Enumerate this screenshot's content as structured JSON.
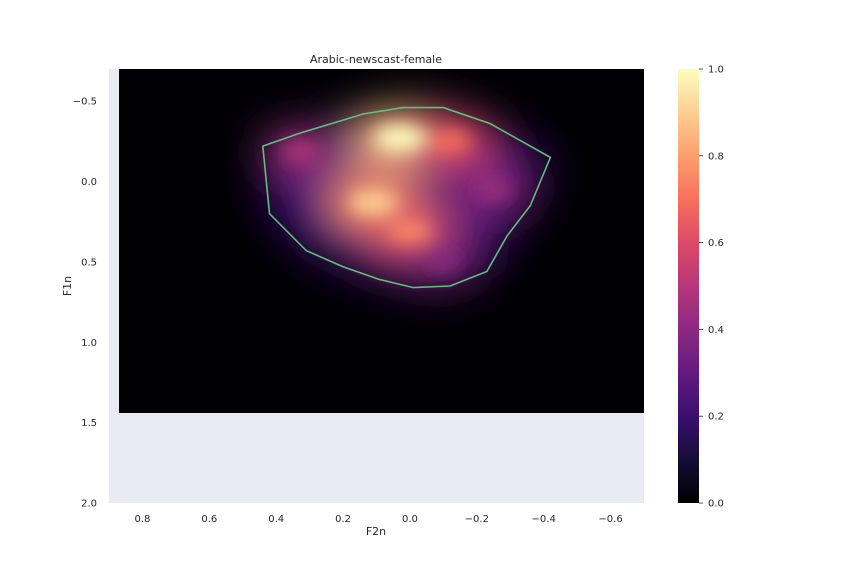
{
  "chart_data": {
    "type": "heatmap",
    "title": "Arabic-newscast-female",
    "xlabel": "F2n",
    "ylabel": "F1n",
    "xlim": [
      0.9,
      -0.7
    ],
    "ylim": [
      2.0,
      -0.7
    ],
    "x_inverted": true,
    "y_inverted": true,
    "x_ticks": [
      "0.8",
      "0.6",
      "0.4",
      "0.2",
      "0.0",
      "−0.2",
      "−0.4",
      "−0.6"
    ],
    "x_tick_values": [
      0.8,
      0.6,
      0.4,
      0.2,
      0.0,
      -0.2,
      -0.4,
      -0.6
    ],
    "y_ticks": [
      "−0.5",
      "0.0",
      "0.5",
      "1.0",
      "1.5",
      "2.0"
    ],
    "y_tick_values": [
      -0.5,
      0.0,
      0.5,
      1.0,
      1.5,
      2.0
    ],
    "heatmap_extent": {
      "x": [
        0.87,
        -0.7
      ],
      "y": [
        -0.7,
        1.44
      ]
    },
    "density_peaks": [
      {
        "x": 0.03,
        "y": -0.27,
        "value": 1.0
      },
      {
        "x": 0.11,
        "y": 0.13,
        "value": 0.9
      },
      {
        "x": 0.0,
        "y": 0.31,
        "value": 0.75
      },
      {
        "x": -0.12,
        "y": -0.25,
        "value": 0.7
      },
      {
        "x": 0.33,
        "y": -0.19,
        "value": 0.5
      },
      {
        "x": -0.25,
        "y": 0.05,
        "value": 0.45
      },
      {
        "x": -0.1,
        "y": 0.5,
        "value": 0.4
      }
    ],
    "contour_line": {
      "color": "#5fbf7f",
      "points": [
        [
          0.44,
          -0.22
        ],
        [
          0.33,
          -0.3
        ],
        [
          0.14,
          -0.42
        ],
        [
          0.02,
          -0.46
        ],
        [
          -0.1,
          -0.46
        ],
        [
          -0.24,
          -0.36
        ],
        [
          -0.42,
          -0.15
        ],
        [
          -0.36,
          0.15
        ],
        [
          -0.29,
          0.34
        ],
        [
          -0.23,
          0.56
        ],
        [
          -0.12,
          0.65
        ],
        [
          -0.01,
          0.66
        ],
        [
          0.09,
          0.61
        ],
        [
          0.2,
          0.53
        ],
        [
          0.31,
          0.43
        ],
        [
          0.42,
          0.2
        ],
        [
          0.44,
          -0.22
        ]
      ]
    },
    "colorbar": {
      "colormap": "magma",
      "range": [
        0.0,
        1.0
      ],
      "ticks": [
        "0.0",
        "0.2",
        "0.4",
        "0.6",
        "0.8",
        "1.0"
      ],
      "tick_values": [
        0.0,
        0.2,
        0.4,
        0.6,
        0.8,
        1.0
      ]
    },
    "axes_background": "#eaeaf2",
    "grid": false
  }
}
